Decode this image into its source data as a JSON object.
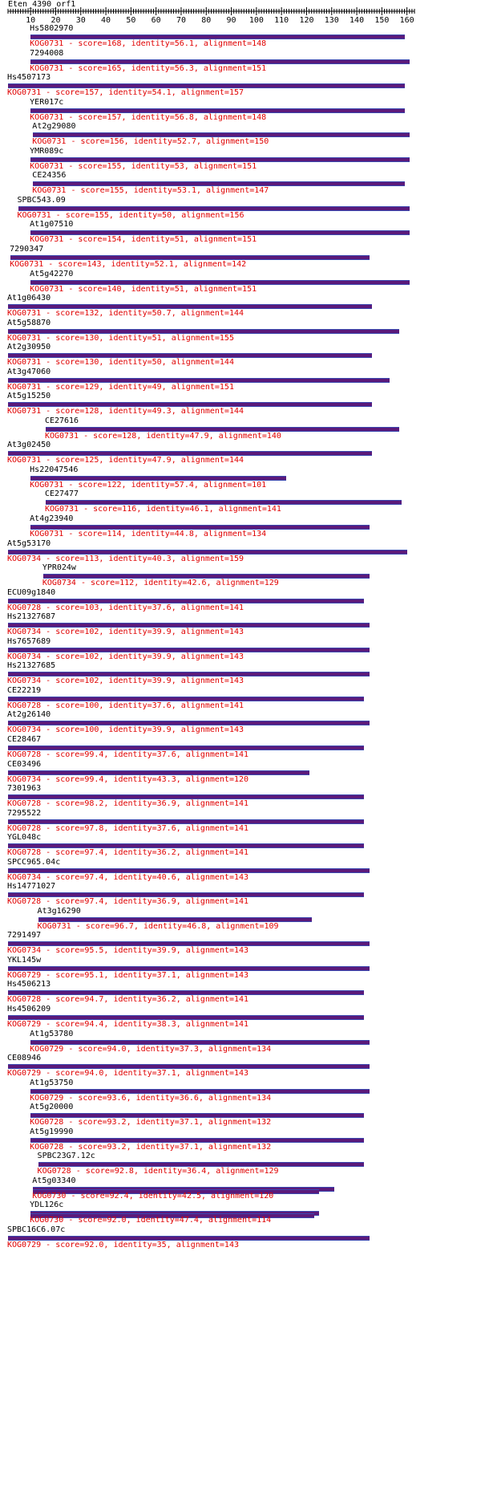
{
  "query_name": "Eten_4390_orf1",
  "axis": {
    "min": 1,
    "max": 163,
    "ticks": [
      10,
      20,
      30,
      40,
      50,
      60,
      70,
      80,
      90,
      100,
      110,
      120,
      130,
      140,
      150,
      160
    ]
  },
  "colors": {
    "bar": "#5b1a7a",
    "bar_edge": "#3a48b0",
    "score_text": "#e00000"
  },
  "hits": [
    {
      "name": "Hs5802970",
      "start": 10,
      "end": 159,
      "label": "KOG0731 - score=168, identity=56.1, alignment=148"
    },
    {
      "name": "7294008",
      "start": 10,
      "end": 161,
      "label": "KOG0731 - score=165, identity=56.3, alignment=151"
    },
    {
      "name": "Hs4507173",
      "start": 1,
      "end": 159,
      "label": "KOG0731 - score=157, identity=54.1, alignment=157"
    },
    {
      "name": "YER017c",
      "start": 10,
      "end": 159,
      "label": "KOG0731 - score=157, identity=56.8, alignment=148"
    },
    {
      "name": "At2g29080",
      "start": 11,
      "end": 161,
      "label": "KOG0731 - score=156, identity=52.7, alignment=150"
    },
    {
      "name": "YMR089c",
      "start": 10,
      "end": 161,
      "label": "KOG0731 - score=155, identity=53, alignment=151"
    },
    {
      "name": "CE24356",
      "start": 11,
      "end": 159,
      "label": "KOG0731 - score=155, identity=53.1, alignment=147"
    },
    {
      "name": "SPBC543.09",
      "start": 5,
      "end": 161,
      "label": "KOG0731 - score=155, identity=50, alignment=156"
    },
    {
      "name": "At1g07510",
      "start": 10,
      "end": 161,
      "label": "KOG0731 - score=154, identity=51, alignment=151"
    },
    {
      "name": "7290347",
      "start": 2,
      "end": 145,
      "label": "KOG0731 - score=143, identity=52.1, alignment=142"
    },
    {
      "name": "At5g42270",
      "start": 10,
      "end": 161,
      "label": "KOG0731 - score=140, identity=51, alignment=151"
    },
    {
      "name": "At1g06430",
      "start": 1,
      "end": 146,
      "label": "KOG0731 - score=132, identity=50.7, alignment=144"
    },
    {
      "name": "At5g58870",
      "start": 1,
      "end": 157,
      "label": "KOG0731 - score=130, identity=51, alignment=155"
    },
    {
      "name": "At2g30950",
      "start": 1,
      "end": 146,
      "label": "KOG0731 - score=130, identity=50, alignment=144"
    },
    {
      "name": "At3g47060",
      "start": 1,
      "end": 153,
      "label": "KOG0731 - score=129, identity=49, alignment=151"
    },
    {
      "name": "At5g15250",
      "start": 1,
      "end": 146,
      "label": "KOG0731 - score=128, identity=49.3, alignment=144"
    },
    {
      "name": "CE27616",
      "start": 16,
      "end": 157,
      "label": "KOG0731 - score=128, identity=47.9, alignment=140"
    },
    {
      "name": "At3g02450",
      "start": 1,
      "end": 146,
      "label": "KOG0731 - score=125, identity=47.9, alignment=144"
    },
    {
      "name": "Hs22047546",
      "start": 10,
      "end": 112,
      "label": "KOG0731 - score=122, identity=57.4, alignment=101"
    },
    {
      "name": "CE27477",
      "start": 16,
      "end": 158,
      "label": "KOG0731 - score=116, identity=46.1, alignment=141"
    },
    {
      "name": "At4g23940",
      "start": 10,
      "end": 145,
      "label": "KOG0731 - score=114, identity=44.8, alignment=134"
    },
    {
      "name": "At5g53170",
      "start": 1,
      "end": 160,
      "label": "KOG0734 - score=113, identity=40.3, alignment=159"
    },
    {
      "name": "YPR024w",
      "start": 15,
      "end": 145,
      "label": "KOG0734 - score=112, identity=42.6, alignment=129"
    },
    {
      "name": "ECU09g1840",
      "start": 1,
      "end": 143,
      "label": "KOG0728 - score=103, identity=37.6, alignment=141"
    },
    {
      "name": "Hs21327687",
      "start": 1,
      "end": 145,
      "label": "KOG0734 - score=102, identity=39.9, alignment=143"
    },
    {
      "name": "Hs7657689",
      "start": 1,
      "end": 145,
      "label": "KOG0734 - score=102, identity=39.9, alignment=143"
    },
    {
      "name": "Hs21327685",
      "start": 1,
      "end": 145,
      "label": "KOG0734 - score=102, identity=39.9, alignment=143"
    },
    {
      "name": "CE22219",
      "start": 1,
      "end": 143,
      "label": "KOG0728 - score=100, identity=37.6, alignment=141"
    },
    {
      "name": "At2g26140",
      "start": 1,
      "end": 145,
      "label": "KOG0734 - score=100, identity=39.9, alignment=143"
    },
    {
      "name": "CE28467",
      "start": 1,
      "end": 143,
      "label": "KOG0728 - score=99.4, identity=37.6, alignment=141"
    },
    {
      "name": "CE03496",
      "start": 1,
      "end": 121,
      "label": "KOG0734 - score=99.4, identity=43.3, alignment=120"
    },
    {
      "name": "7301963",
      "start": 1,
      "end": 143,
      "label": "KOG0728 - score=98.2, identity=36.9, alignment=141"
    },
    {
      "name": "7295522",
      "start": 1,
      "end": 143,
      "label": "KOG0728 - score=97.8, identity=37.6, alignment=141"
    },
    {
      "name": "YGL048c",
      "start": 1,
      "end": 143,
      "label": "KOG0728 - score=97.4, identity=36.2, alignment=141"
    },
    {
      "name": "SPCC965.04c",
      "start": 1,
      "end": 145,
      "label": "KOG0734 - score=97.4, identity=40.6, alignment=143"
    },
    {
      "name": "Hs14771027",
      "start": 1,
      "end": 143,
      "label": "KOG0728 - score=97.4, identity=36.9, alignment=141"
    },
    {
      "name": "At3g16290",
      "start": 13,
      "end": 122,
      "label": "KOG0731 - score=96.7, identity=46.8, alignment=109"
    },
    {
      "name": "7291497",
      "start": 1,
      "end": 145,
      "label": "KOG0734 - score=95.5, identity=39.9, alignment=143"
    },
    {
      "name": "YKL145w",
      "start": 1,
      "end": 145,
      "label": "KOG0729 - score=95.1, identity=37.1, alignment=143"
    },
    {
      "name": "Hs4506213",
      "start": 1,
      "end": 143,
      "label": "KOG0728 - score=94.7, identity=36.2, alignment=141"
    },
    {
      "name": "Hs4506209",
      "start": 1,
      "end": 143,
      "label": "KOG0729 - score=94.4, identity=38.3, alignment=141"
    },
    {
      "name": "At1g53780",
      "start": 10,
      "end": 145,
      "label": "KOG0729 - score=94.0, identity=37.3, alignment=134"
    },
    {
      "name": "CE08946",
      "start": 1,
      "end": 145,
      "label": "KOG0729 - score=94.0, identity=37.1, alignment=143"
    },
    {
      "name": "At1g53750",
      "start": 10,
      "end": 145,
      "label": "KOG0729 - score=93.6, identity=36.6, alignment=134"
    },
    {
      "name": "At5g20000",
      "start": 10,
      "end": 143,
      "label": "KOG0728 - score=93.2, identity=37.1, alignment=132"
    },
    {
      "name": "At5g19990",
      "start": 10,
      "end": 143,
      "label": "KOG0728 - score=93.2, identity=37.1, alignment=132"
    },
    {
      "name": "SPBC23G7.12c",
      "start": 13,
      "end": 143,
      "label": "KOG0728 - score=92.8, identity=36.4, alignment=129"
    },
    {
      "name": "At5g03340",
      "start": 11,
      "end": 131,
      "end2": 125,
      "label": "KOG0730 - score=92.4, identity=42.5, alignment=120"
    },
    {
      "name": "YDL126c",
      "start": 10,
      "end": 125,
      "end2": 123,
      "label": "KOG0730 - score=92.0, identity=47.4, alignment=114"
    },
    {
      "name": "SPBC16C6.07c",
      "start": 1,
      "end": 145,
      "label": "KOG0729 - score=92.0, identity=35, alignment=143"
    }
  ]
}
